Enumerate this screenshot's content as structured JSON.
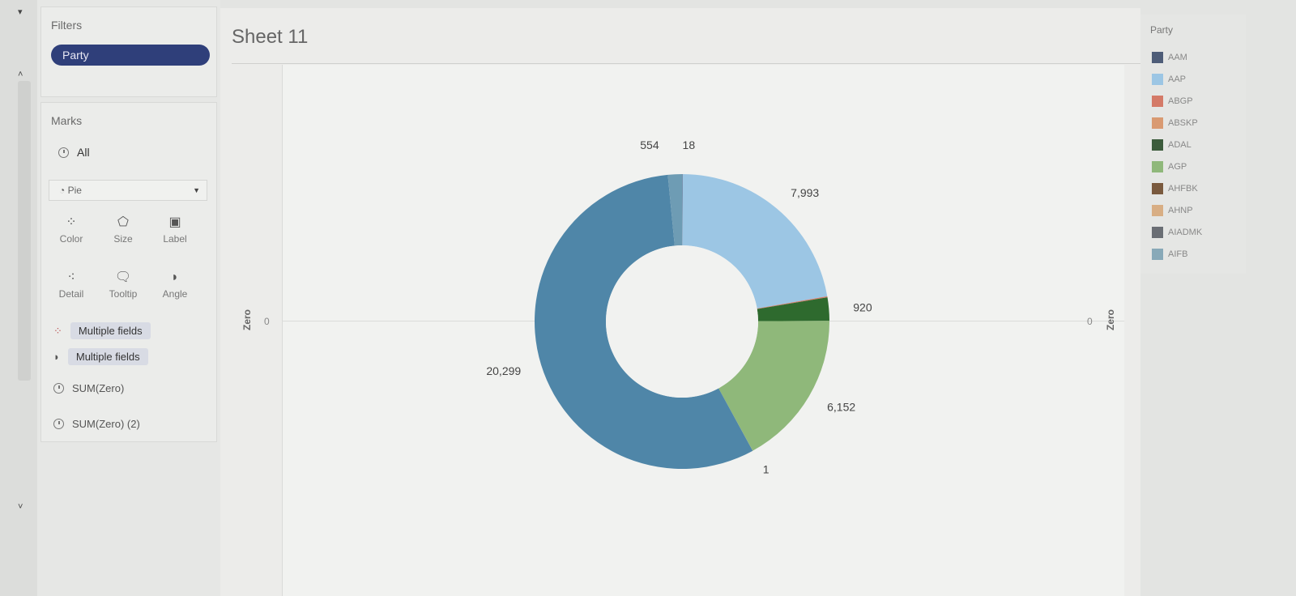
{
  "filters": {
    "title": "Filters",
    "pills": [
      "Party"
    ]
  },
  "marks": {
    "title": "Marks",
    "all_label": "All",
    "mark_type": "Pie",
    "buttons": [
      "Color",
      "Size",
      "Label",
      "Detail",
      "Tooltip",
      "Angle"
    ],
    "fields": [
      "Multiple fields",
      "Multiple fields",
      "SUM(Zero)",
      "SUM(Zero) (2)"
    ]
  },
  "sheet": {
    "title": "Sheet 11",
    "left_axis_title": "Zero",
    "right_axis_title": "Zero",
    "left_tick": "0",
    "right_tick": "0"
  },
  "legend": {
    "title": "Party",
    "items": [
      {
        "label": "AAM",
        "color": "#4e5d78"
      },
      {
        "label": "AAP",
        "color": "#9cc6e4"
      },
      {
        "label": "ABGP",
        "color": "#d47a68"
      },
      {
        "label": "ABSKP",
        "color": "#d99a72"
      },
      {
        "label": "ADAL",
        "color": "#3c5c3c"
      },
      {
        "label": "AGP",
        "color": "#8fb87a"
      },
      {
        "label": "AHFBK",
        "color": "#7a5a3e"
      },
      {
        "label": "AHNP",
        "color": "#d8ae84"
      },
      {
        "label": "AIADMK",
        "color": "#6a6e74"
      },
      {
        "label": "AIFB",
        "color": "#88a9b8"
      }
    ]
  },
  "chart_data": {
    "type": "pie",
    "donut": true,
    "slices": [
      {
        "label": "18",
        "value": 18,
        "color": "#4e5d78"
      },
      {
        "label": "7,993",
        "value": 7993,
        "color": "#9cc6e4"
      },
      {
        "label": "",
        "value": 40,
        "color": "#d47a68"
      },
      {
        "label": "920",
        "value": 920,
        "color": "#2e6a2e"
      },
      {
        "label": "6,152",
        "value": 6152,
        "color": "#8fb87a"
      },
      {
        "label": "1",
        "value": 1,
        "color": "#d8ae84"
      },
      {
        "label": "20,299",
        "value": 20299,
        "color": "#4f86a8"
      },
      {
        "label": "554",
        "value": 554,
        "color": "#6e9cb4"
      }
    ]
  }
}
